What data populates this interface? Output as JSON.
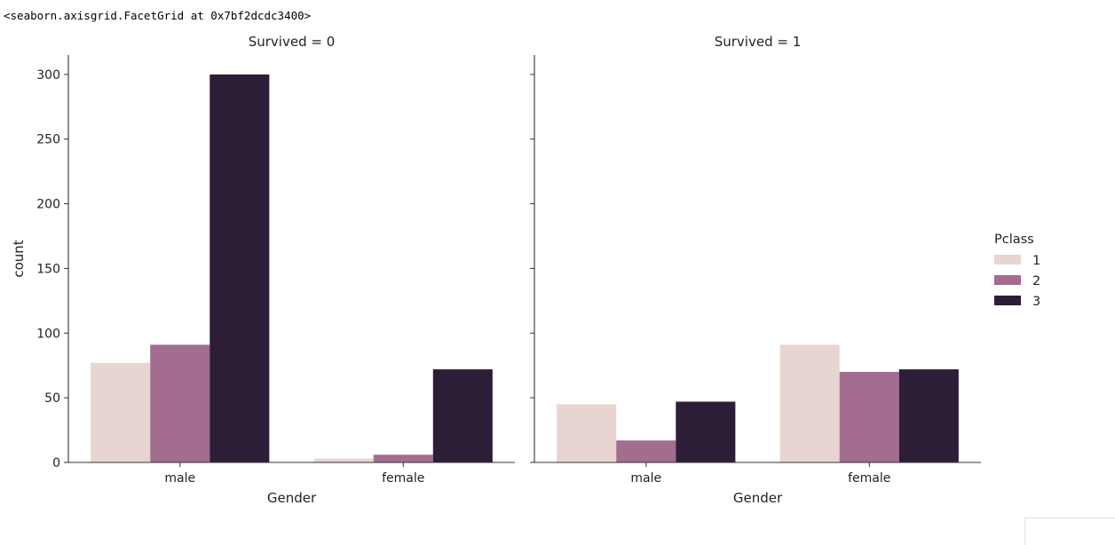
{
  "output": {
    "repr_text": "<seaborn.axisgrid.FacetGrid at 0x7bf2dcdc3400>"
  },
  "chart_data": {
    "type": "bar",
    "facet_by": "Survived",
    "ylabel": "count",
    "ylim": [
      0,
      315
    ],
    "yticks": [
      0,
      50,
      100,
      150,
      200,
      250,
      300
    ],
    "legend": {
      "title": "Pclass",
      "placement": "right",
      "entries": [
        {
          "label": "1",
          "color": "#e8d4d1"
        },
        {
          "label": "2",
          "color": "#a26d8f"
        },
        {
          "label": "3",
          "color": "#2d1e38"
        }
      ]
    },
    "panels": [
      {
        "title": "Survived = 0",
        "xlabel": "Gender",
        "categories": [
          "male",
          "female"
        ],
        "series": [
          {
            "name": "1",
            "values": [
              77,
              3
            ]
          },
          {
            "name": "2",
            "values": [
              91,
              6
            ]
          },
          {
            "name": "3",
            "values": [
              300,
              72
            ]
          }
        ]
      },
      {
        "title": "Survived = 1",
        "xlabel": "Gender",
        "categories": [
          "male",
          "female"
        ],
        "series": [
          {
            "name": "1",
            "values": [
              45,
              91
            ]
          },
          {
            "name": "2",
            "values": [
              17,
              70
            ]
          },
          {
            "name": "3",
            "values": [
              47,
              72
            ]
          }
        ]
      }
    ]
  }
}
